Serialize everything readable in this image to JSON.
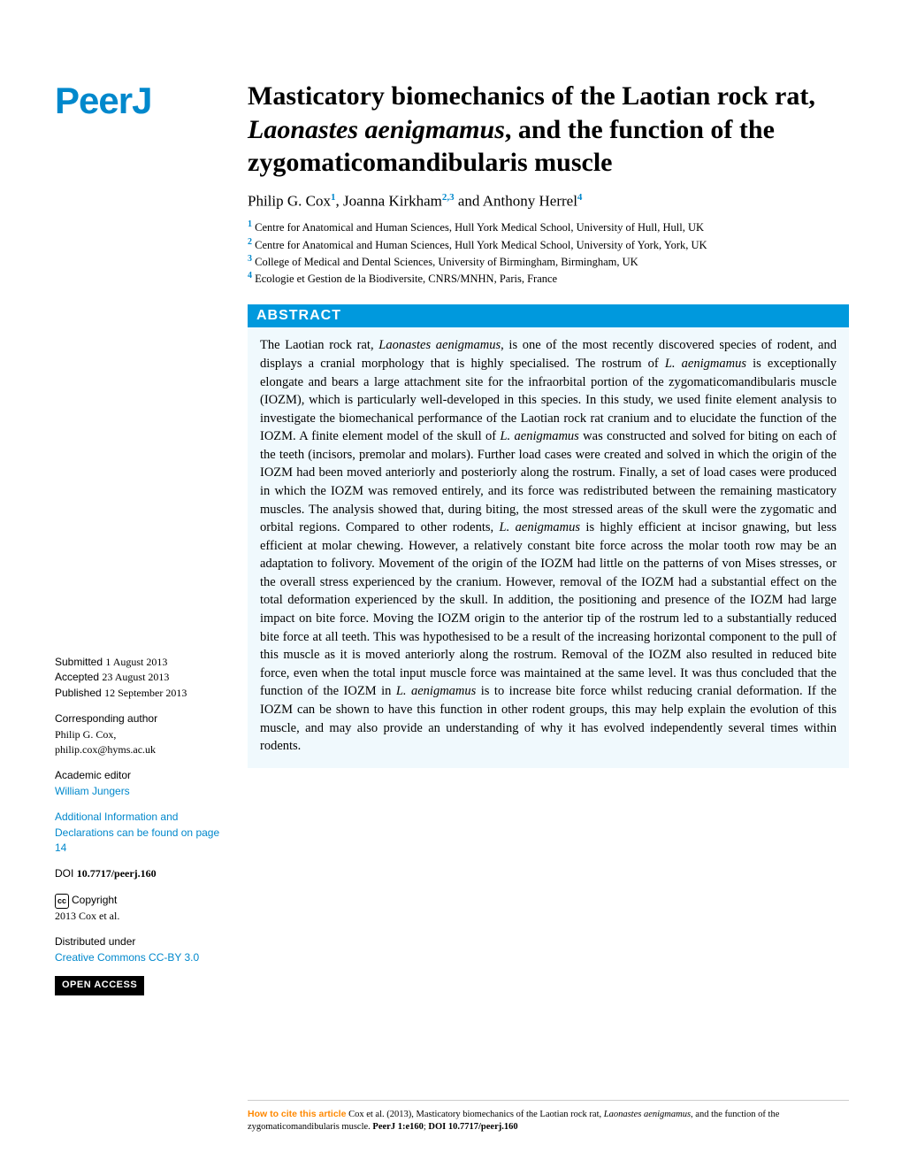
{
  "journal": {
    "logo_text": "PeerJ",
    "logo_color": "#0088cc"
  },
  "article": {
    "title_pre": "Masticatory biomechanics of the Laotian rock rat, ",
    "title_species": "Laonastes aenigmamus",
    "title_post": ", and the function of the zygomaticomandibularis muscle",
    "authors": [
      {
        "name": "Philip G. Cox",
        "affil": "1"
      },
      {
        "name": "Joanna Kirkham",
        "affil": "2,3"
      },
      {
        "name": "Anthony Herrel",
        "affil": "4"
      }
    ],
    "affiliations": [
      {
        "num": "1",
        "text": "Centre for Anatomical and Human Sciences, Hull York Medical School, University of Hull, Hull, UK"
      },
      {
        "num": "2",
        "text": "Centre for Anatomical and Human Sciences, Hull York Medical School, University of York, York, UK"
      },
      {
        "num": "3",
        "text": "College of Medical and Dental Sciences, University of Birmingham, Birmingham, UK"
      },
      {
        "num": "4",
        "text": "Ecologie et Gestion de la Biodiversite, CNRS/MNHN, Paris, France"
      }
    ]
  },
  "abstract": {
    "header": "ABSTRACT",
    "text_parts": [
      "The Laotian rock rat, ",
      "Laonastes aenigmamus",
      ", is one of the most recently discovered species of rodent, and displays a cranial morphology that is highly specialised. The rostrum of ",
      "L. aenigmamus",
      " is exceptionally elongate and bears a large attachment site for the infraorbital portion of the zygomaticomandibularis muscle (IOZM), which is particularly well-developed in this species. In this study, we used finite element analysis to investigate the biomechanical performance of the Laotian rock rat cranium and to elucidate the function of the IOZM. A finite element model of the skull of ",
      "L. aenigmamus",
      " was constructed and solved for biting on each of the teeth (incisors, premolar and molars). Further load cases were created and solved in which the origin of the IOZM had been moved anteriorly and posteriorly along the rostrum. Finally, a set of load cases were produced in which the IOZM was removed entirely, and its force was redistributed between the remaining masticatory muscles. The analysis showed that, during biting, the most stressed areas of the skull were the zygomatic and orbital regions. Compared to other rodents, ",
      "L. aenigmamus",
      " is highly efficient at incisor gnawing, but less efficient at molar chewing. However, a relatively constant bite force across the molar tooth row may be an adaptation to folivory. Movement of the origin of the IOZM had little on the patterns of von Mises stresses, or the overall stress experienced by the cranium. However, removal of the IOZM had a substantial effect on the total deformation experienced by the skull. In addition, the positioning and presence of the IOZM had large impact on bite force. Moving the IOZM origin to the anterior tip of the rostrum led to a substantially reduced bite force at all teeth. This was hypothesised to be a result of the increasing horizontal component to the pull of this muscle as it is moved anteriorly along the rostrum. Removal of the IOZM also resulted in reduced bite force, even when the total input muscle force was maintained at the same level. It was thus concluded that the function of the IOZM in ",
      "L. aenigmamus",
      " is to increase bite force whilst reducing cranial deformation. If the IOZM can be shown to have this function in other rodent groups, this may help explain the evolution of this muscle, and may also provide an understanding of why it has evolved independently several times within rodents."
    ]
  },
  "sidebar": {
    "submitted_label": "Submitted",
    "submitted_date": "1 August 2013",
    "accepted_label": "Accepted",
    "accepted_date": "23 August 2013",
    "published_label": "Published",
    "published_date": "12 September 2013",
    "corr_author_label": "Corresponding author",
    "corr_author_name": "Philip G. Cox,",
    "corr_author_email": "philip.cox@hyms.ac.uk",
    "academic_editor_label": "Academic editor",
    "academic_editor_name": "William Jungers",
    "additional_info": "Additional Information and Declarations can be found on page 14",
    "doi_label": "DOI",
    "doi_value": "10.7717/peerj.160",
    "copyright_label": "Copyright",
    "copyright_text": "2013  Cox et al.",
    "distributed_label": "Distributed under",
    "license": "Creative Commons CC-BY 3.0",
    "open_access": "OPEN ACCESS"
  },
  "citation": {
    "label": "How to cite this article",
    "text_pre": " Cox et al. (2013), Masticatory biomechanics of the Laotian rock rat, ",
    "species": "Laonastes aenigmamus",
    "text_mid": ", and the function of the zygomaticomandibularis muscle. ",
    "journal": "PeerJ 1:e160",
    "sep": "; ",
    "doi": "DOI 10.7717/peerj.160"
  },
  "style": {
    "accent_color": "#0088cc",
    "abstract_bg": "#f0f9fd",
    "abstract_header_bg": "#0099dd",
    "cite_label_color": "#ff8800"
  }
}
